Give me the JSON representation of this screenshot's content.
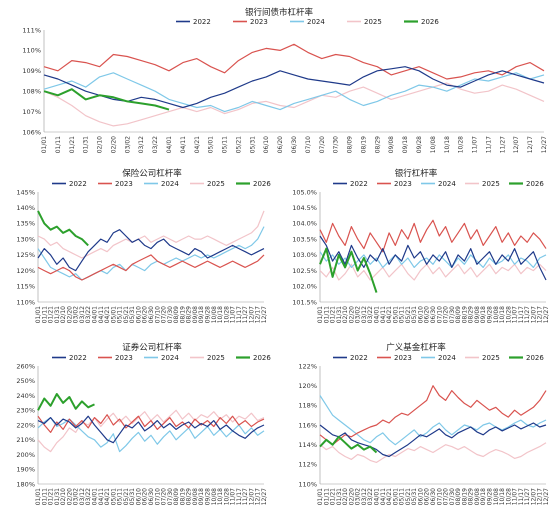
{
  "legend_labels": [
    "2022",
    "2023",
    "2024",
    "2025",
    "2026"
  ],
  "colors": {
    "2022": "#1f3a8a",
    "2023": "#d9534f",
    "2024": "#7fc8e8",
    "2025": "#f2c4c9",
    "2026": "#2ca02c"
  },
  "month_ticks": [
    "01/01",
    "01/11",
    "01/21",
    "01/31",
    "02/10",
    "02/20",
    "03/02",
    "03/12",
    "03/22",
    "04/01",
    "04/11",
    "04/21",
    "05/01",
    "05/11",
    "05/21",
    "05/31",
    "06/10",
    "06/20",
    "06/30",
    "07/10",
    "07/20",
    "07/30",
    "08/09",
    "08/19",
    "08/29",
    "09/08",
    "09/18",
    "09/28",
    "10/08",
    "10/18",
    "10/28",
    "11/07",
    "11/17",
    "11/27",
    "12/07",
    "12/17",
    "12/27"
  ],
  "chart_data": [
    {
      "id": "interbank",
      "type": "line",
      "title": "银行间债市杠杆率",
      "ylim": [
        1.06,
        1.11
      ],
      "yticks": [
        "106%",
        "107%",
        "108%",
        "109%",
        "110%",
        "111%"
      ],
      "legend_position": "top",
      "series": [
        {
          "name": "2022",
          "key": "k2022",
          "values": [
            1.088,
            1.086,
            1.083,
            1.08,
            1.078,
            1.076,
            1.075,
            1.077,
            1.076,
            1.074,
            1.072,
            1.074,
            1.077,
            1.079,
            1.082,
            1.085,
            1.087,
            1.09,
            1.088,
            1.086,
            1.085,
            1.084,
            1.083,
            1.087,
            1.09,
            1.091,
            1.092,
            1.09,
            1.086,
            1.083,
            1.082,
            1.085,
            1.088,
            1.09,
            1.088,
            1.086,
            1.084
          ]
        },
        {
          "name": "2023",
          "key": "k2023",
          "values": [
            1.092,
            1.09,
            1.095,
            1.094,
            1.092,
            1.098,
            1.097,
            1.095,
            1.093,
            1.09,
            1.094,
            1.096,
            1.092,
            1.089,
            1.095,
            1.099,
            1.101,
            1.1,
            1.103,
            1.099,
            1.096,
            1.098,
            1.097,
            1.094,
            1.092,
            1.088,
            1.09,
            1.092,
            1.089,
            1.086,
            1.087,
            1.089,
            1.09,
            1.088,
            1.092,
            1.094,
            1.09
          ]
        },
        {
          "name": "2024",
          "key": "k2024",
          "values": [
            1.081,
            1.083,
            1.085,
            1.082,
            1.087,
            1.089,
            1.086,
            1.083,
            1.08,
            1.076,
            1.074,
            1.072,
            1.073,
            1.07,
            1.072,
            1.075,
            1.073,
            1.071,
            1.074,
            1.076,
            1.078,
            1.08,
            1.076,
            1.073,
            1.075,
            1.078,
            1.08,
            1.083,
            1.082,
            1.08,
            1.083,
            1.086,
            1.085,
            1.087,
            1.089,
            1.086,
            1.088
          ]
        },
        {
          "name": "2025",
          "key": "k2025",
          "values": [
            1.08,
            1.077,
            1.073,
            1.068,
            1.065,
            1.063,
            1.064,
            1.066,
            1.068,
            1.07,
            1.072,
            1.07,
            1.072,
            1.069,
            1.071,
            1.074,
            1.075,
            1.073,
            1.072,
            1.075,
            1.078,
            1.077,
            1.08,
            1.082,
            1.079,
            1.076,
            1.078,
            1.08,
            1.082,
            1.084,
            1.081,
            1.079,
            1.08,
            1.083,
            1.081,
            1.078,
            1.075
          ]
        },
        {
          "name": "2026",
          "key": "k2026",
          "values": [
            1.08,
            1.078,
            1.081,
            1.076,
            1.078,
            1.077,
            1.075,
            1.074,
            1.073,
            1.071
          ]
        }
      ]
    },
    {
      "id": "insurance",
      "type": "line",
      "title": "保险公司杠杆率",
      "ylim": [
        1.1,
        1.45
      ],
      "yticks": [
        "110%",
        "115%",
        "120%",
        "125%",
        "130%",
        "135%",
        "140%",
        "145%"
      ],
      "legend_position": "top",
      "series": [
        {
          "name": "2022",
          "key": "k2022",
          "values": [
            1.24,
            1.27,
            1.25,
            1.22,
            1.24,
            1.21,
            1.2,
            1.23,
            1.26,
            1.28,
            1.3,
            1.29,
            1.32,
            1.33,
            1.31,
            1.29,
            1.3,
            1.28,
            1.27,
            1.29,
            1.3,
            1.28,
            1.27,
            1.26,
            1.25,
            1.27,
            1.26,
            1.24,
            1.25,
            1.26,
            1.27,
            1.28,
            1.27,
            1.26,
            1.25,
            1.26,
            1.27
          ]
        },
        {
          "name": "2023",
          "key": "k2023",
          "values": [
            1.21,
            1.2,
            1.19,
            1.2,
            1.21,
            1.2,
            1.18,
            1.17,
            1.18,
            1.19,
            1.2,
            1.21,
            1.22,
            1.21,
            1.2,
            1.22,
            1.23,
            1.24,
            1.25,
            1.23,
            1.22,
            1.21,
            1.22,
            1.23,
            1.22,
            1.21,
            1.22,
            1.23,
            1.22,
            1.21,
            1.22,
            1.23,
            1.22,
            1.21,
            1.22,
            1.23,
            1.25
          ]
        },
        {
          "name": "2024",
          "key": "k2024",
          "values": [
            1.27,
            1.24,
            1.21,
            1.2,
            1.19,
            1.18,
            1.19,
            1.17,
            1.18,
            1.19,
            1.2,
            1.19,
            1.21,
            1.22,
            1.2,
            1.22,
            1.21,
            1.2,
            1.22,
            1.23,
            1.22,
            1.23,
            1.24,
            1.23,
            1.24,
            1.25,
            1.24,
            1.25,
            1.24,
            1.25,
            1.26,
            1.27,
            1.28,
            1.27,
            1.28,
            1.3,
            1.34
          ]
        },
        {
          "name": "2025",
          "key": "k2025",
          "values": [
            1.31,
            1.3,
            1.28,
            1.29,
            1.27,
            1.26,
            1.25,
            1.24,
            1.25,
            1.26,
            1.27,
            1.26,
            1.28,
            1.29,
            1.3,
            1.29,
            1.3,
            1.31,
            1.29,
            1.3,
            1.31,
            1.3,
            1.29,
            1.3,
            1.31,
            1.3,
            1.3,
            1.31,
            1.3,
            1.29,
            1.28,
            1.29,
            1.3,
            1.31,
            1.32,
            1.34,
            1.39
          ]
        },
        {
          "name": "2026",
          "key": "k2026",
          "values": [
            1.39,
            1.35,
            1.33,
            1.34,
            1.32,
            1.33,
            1.31,
            1.3,
            1.28
          ]
        }
      ]
    },
    {
      "id": "banks",
      "type": "line",
      "title": "银行杠杆率",
      "ylim": [
        1.015,
        1.05
      ],
      "yticks": [
        "101.5%",
        "102.0%",
        "102.5%",
        "103.0%",
        "103.5%",
        "104.0%",
        "104.5%",
        "105.0%"
      ],
      "legend_position": "top",
      "series": [
        {
          "name": "2022",
          "key": "k2022",
          "values": [
            1.036,
            1.033,
            1.028,
            1.031,
            1.027,
            1.033,
            1.029,
            1.026,
            1.03,
            1.028,
            1.032,
            1.027,
            1.03,
            1.028,
            1.033,
            1.029,
            1.031,
            1.027,
            1.03,
            1.028,
            1.031,
            1.026,
            1.03,
            1.028,
            1.032,
            1.027,
            1.029,
            1.031,
            1.027,
            1.03,
            1.028,
            1.032,
            1.027,
            1.029,
            1.031,
            1.026,
            1.022
          ]
        },
        {
          "name": "2023",
          "key": "k2023",
          "values": [
            1.038,
            1.034,
            1.04,
            1.036,
            1.033,
            1.039,
            1.035,
            1.032,
            1.037,
            1.034,
            1.031,
            1.037,
            1.033,
            1.038,
            1.035,
            1.04,
            1.034,
            1.038,
            1.041,
            1.036,
            1.039,
            1.034,
            1.037,
            1.04,
            1.035,
            1.038,
            1.033,
            1.036,
            1.039,
            1.034,
            1.037,
            1.033,
            1.036,
            1.034,
            1.037,
            1.035,
            1.032
          ]
        },
        {
          "name": "2024",
          "key": "k2024",
          "values": [
            1.031,
            1.028,
            1.03,
            1.027,
            1.029,
            1.026,
            1.028,
            1.03,
            1.027,
            1.029,
            1.026,
            1.028,
            1.03,
            1.027,
            1.029,
            1.026,
            1.028,
            1.029,
            1.027,
            1.03,
            1.028,
            1.026,
            1.029,
            1.027,
            1.03,
            1.028,
            1.026,
            1.029,
            1.027,
            1.028,
            1.03,
            1.027,
            1.029,
            1.028,
            1.026,
            1.029,
            1.03
          ]
        },
        {
          "name": "2025",
          "key": "k2025",
          "values": [
            1.025,
            1.023,
            1.026,
            1.022,
            1.024,
            1.027,
            1.023,
            1.025,
            1.022,
            1.024,
            1.026,
            1.023,
            1.025,
            1.027,
            1.024,
            1.022,
            1.025,
            1.027,
            1.024,
            1.026,
            1.023,
            1.025,
            1.027,
            1.024,
            1.026,
            1.023,
            1.025,
            1.027,
            1.024,
            1.026,
            1.025,
            1.027,
            1.024,
            1.026,
            1.025,
            1.027,
            1.025
          ]
        },
        {
          "name": "2026",
          "key": "k2026",
          "values": [
            1.027,
            1.032,
            1.023,
            1.03,
            1.026,
            1.031,
            1.025,
            1.029,
            1.024,
            1.018
          ]
        }
      ]
    },
    {
      "id": "securities",
      "type": "line",
      "title": "证券公司杠杆率",
      "ylim": [
        1.8,
        2.6
      ],
      "yticks": [
        "180%",
        "190%",
        "200%",
        "210%",
        "220%",
        "230%",
        "240%",
        "250%",
        "260%"
      ],
      "legend_position": "top",
      "series": [
        {
          "name": "2022",
          "key": "k2022",
          "values": [
            2.23,
            2.21,
            2.25,
            2.2,
            2.24,
            2.22,
            2.18,
            2.21,
            2.26,
            2.2,
            2.15,
            2.1,
            2.08,
            2.14,
            2.2,
            2.18,
            2.22,
            2.16,
            2.19,
            2.23,
            2.18,
            2.21,
            2.17,
            2.2,
            2.22,
            2.18,
            2.21,
            2.19,
            2.23,
            2.17,
            2.2,
            2.16,
            2.13,
            2.11,
            2.15,
            2.18,
            2.2
          ]
        },
        {
          "name": "2023",
          "key": "k2023",
          "values": [
            2.26,
            2.2,
            2.15,
            2.22,
            2.17,
            2.24,
            2.19,
            2.23,
            2.18,
            2.25,
            2.21,
            2.27,
            2.2,
            2.24,
            2.18,
            2.22,
            2.26,
            2.19,
            2.23,
            2.17,
            2.21,
            2.25,
            2.19,
            2.22,
            2.18,
            2.24,
            2.2,
            2.23,
            2.19,
            2.25,
            2.21,
            2.26,
            2.2,
            2.23,
            2.19,
            2.22,
            2.24
          ]
        },
        {
          "name": "2024",
          "key": "k2024",
          "values": [
            2.18,
            2.22,
            2.25,
            2.19,
            2.21,
            2.24,
            2.2,
            2.16,
            2.12,
            2.1,
            2.05,
            2.08,
            2.14,
            2.02,
            2.06,
            2.11,
            2.15,
            2.09,
            2.13,
            2.07,
            2.12,
            2.16,
            2.1,
            2.14,
            2.18,
            2.11,
            2.15,
            2.19,
            2.13,
            2.17,
            2.12,
            2.16,
            2.2,
            2.14,
            2.18,
            2.13,
            2.16
          ]
        },
        {
          "name": "2025",
          "key": "k2025",
          "values": [
            2.1,
            2.05,
            2.02,
            2.08,
            2.12,
            2.18,
            2.15,
            2.22,
            2.2,
            2.25,
            2.19,
            2.24,
            2.28,
            2.22,
            2.26,
            2.21,
            2.25,
            2.29,
            2.23,
            2.27,
            2.22,
            2.26,
            2.3,
            2.24,
            2.28,
            2.23,
            2.27,
            2.25,
            2.29,
            2.24,
            2.27,
            2.22,
            2.26,
            2.24,
            2.28,
            2.23,
            2.25
          ]
        },
        {
          "name": "2026",
          "key": "k2026",
          "values": [
            2.3,
            2.38,
            2.33,
            2.41,
            2.35,
            2.39,
            2.31,
            2.36,
            2.32,
            2.34
          ]
        }
      ]
    },
    {
      "id": "broad_funds",
      "type": "line",
      "title": "广义基金杠杆率",
      "ylim": [
        1.1,
        1.22
      ],
      "yticks": [
        "110%",
        "112%",
        "114%",
        "116%",
        "118%",
        "120%",
        "122%"
      ],
      "legend_position": "top",
      "series": [
        {
          "name": "2022",
          "key": "k2022",
          "values": [
            1.16,
            1.155,
            1.15,
            1.148,
            1.152,
            1.145,
            1.142,
            1.14,
            1.138,
            1.135,
            1.13,
            1.128,
            1.132,
            1.136,
            1.14,
            1.145,
            1.15,
            1.148,
            1.152,
            1.156,
            1.15,
            1.147,
            1.152,
            1.155,
            1.158,
            1.153,
            1.15,
            1.155,
            1.158,
            1.154,
            1.157,
            1.16,
            1.156,
            1.159,
            1.162,
            1.158,
            1.16
          ]
        },
        {
          "name": "2023",
          "key": "k2023",
          "values": [
            1.15,
            1.145,
            1.14,
            1.145,
            1.15,
            1.148,
            1.152,
            1.155,
            1.158,
            1.16,
            1.165,
            1.162,
            1.168,
            1.172,
            1.17,
            1.175,
            1.18,
            1.185,
            1.2,
            1.19,
            1.185,
            1.195,
            1.188,
            1.182,
            1.178,
            1.185,
            1.18,
            1.175,
            1.178,
            1.172,
            1.168,
            1.175,
            1.17,
            1.174,
            1.178,
            1.185,
            1.195
          ]
        },
        {
          "name": "2024",
          "key": "k2024",
          "values": [
            1.19,
            1.18,
            1.17,
            1.165,
            1.16,
            1.155,
            1.15,
            1.145,
            1.142,
            1.148,
            1.152,
            1.145,
            1.14,
            1.145,
            1.15,
            1.155,
            1.148,
            1.152,
            1.158,
            1.162,
            1.155,
            1.15,
            1.155,
            1.16,
            1.158,
            1.155,
            1.16,
            1.162,
            1.158,
            1.155,
            1.158,
            1.162,
            1.165,
            1.16,
            1.158,
            1.162,
            1.165
          ]
        },
        {
          "name": "2025",
          "key": "k2025",
          "values": [
            1.14,
            1.135,
            1.138,
            1.132,
            1.128,
            1.125,
            1.13,
            1.128,
            1.124,
            1.122,
            1.126,
            1.13,
            1.128,
            1.132,
            1.136,
            1.134,
            1.138,
            1.135,
            1.132,
            1.136,
            1.14,
            1.138,
            1.135,
            1.138,
            1.134,
            1.13,
            1.128,
            1.132,
            1.135,
            1.133,
            1.13,
            1.126,
            1.128,
            1.132,
            1.135,
            1.138,
            1.142
          ]
        },
        {
          "name": "2026",
          "key": "k2026",
          "values": [
            1.138,
            1.145,
            1.14,
            1.148,
            1.142,
            1.136,
            1.14,
            1.135,
            1.138,
            1.132
          ]
        }
      ]
    }
  ]
}
